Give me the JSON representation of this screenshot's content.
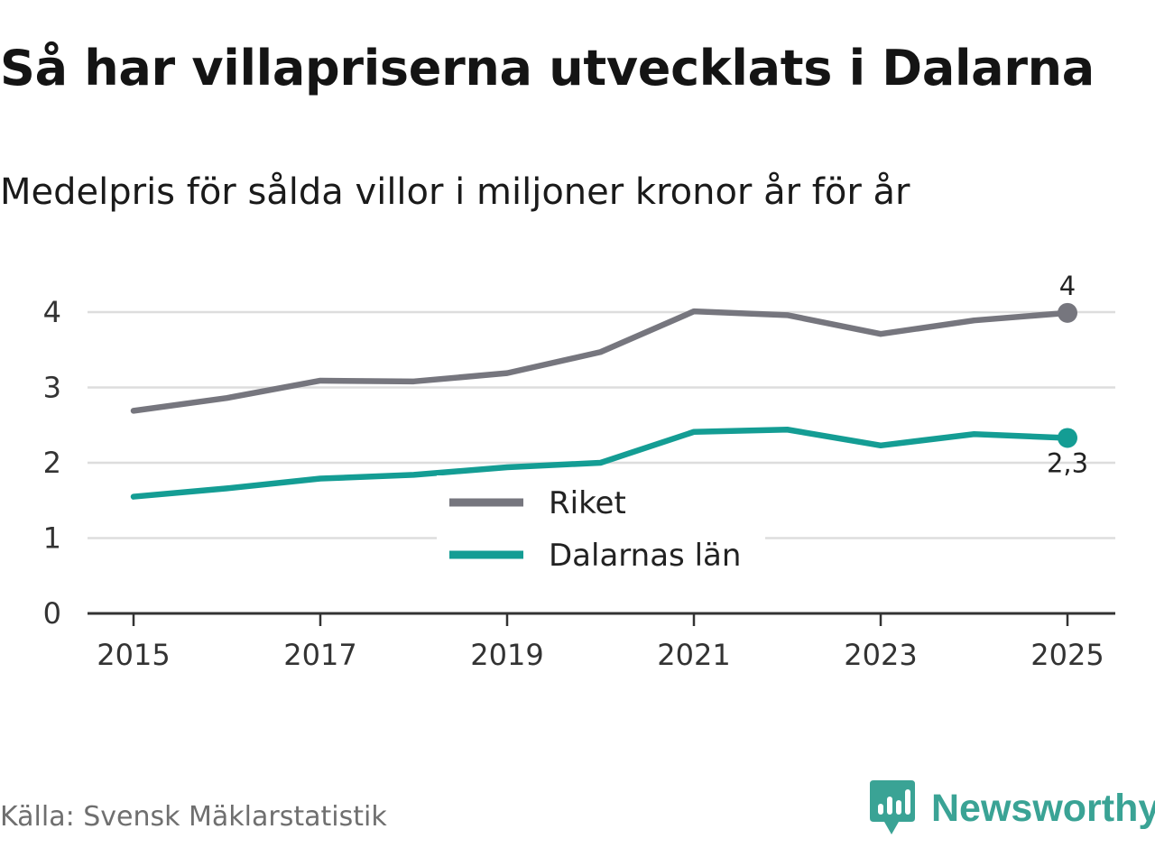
{
  "title": "Så har villapriserna utvecklats i Dalarna",
  "subtitle": "Medelpris för sålda villor i miljoner kronor år för år",
  "source": "Källa: Svensk Mäklarstatistik",
  "brand": {
    "name": "Newsworthy",
    "icon": "newsworthy-logo-icon",
    "color": "#3aa395"
  },
  "colors": {
    "riket": "#76767e",
    "dalarna": "#149d94",
    "grid": "#dddddd",
    "axis": "#333333"
  },
  "chart_data": {
    "type": "line",
    "title": "Så har villapriserna utvecklats i Dalarna",
    "subtitle": "Medelpris för sålda villor i miljoner kronor år för år",
    "xlabel": "",
    "ylabel": "",
    "x": [
      2015,
      2016,
      2017,
      2018,
      2019,
      2020,
      2021,
      2022,
      2023,
      2024,
      2025
    ],
    "x_ticks": [
      "2015",
      "2017",
      "2019",
      "2021",
      "2023",
      "2025"
    ],
    "y_ticks": [
      "0",
      "1",
      "2",
      "3",
      "4"
    ],
    "ylim": [
      0,
      4
    ],
    "grid": true,
    "legend_position": "center",
    "series": [
      {
        "name": "Riket",
        "color": "#76767e",
        "values": [
          2.69,
          2.86,
          3.09,
          3.08,
          3.19,
          3.47,
          4.01,
          3.96,
          3.71,
          3.89,
          3.99
        ],
        "end_label": "4"
      },
      {
        "name": "Dalarnas län",
        "color": "#149d94",
        "values": [
          1.55,
          1.66,
          1.79,
          1.84,
          1.94,
          2.0,
          2.41,
          2.44,
          2.23,
          2.38,
          2.33
        ],
        "end_label": "2,3"
      }
    ]
  }
}
